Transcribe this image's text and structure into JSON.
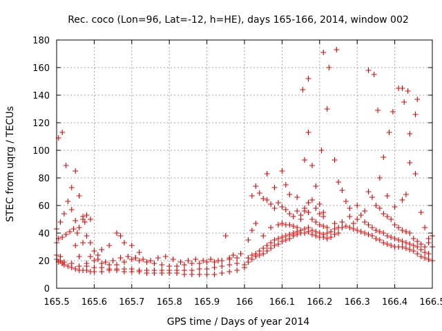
{
  "chart_data": {
    "type": "scatter",
    "title": "Rec. coco (Lon=96, Lat=-12, h=HE), days 165-166, 2014, window 002",
    "xlabel": "GPS time / Days of year 2014",
    "ylabel": "STEC from uqrg / TECUs",
    "xlim": [
      165.5,
      166.5
    ],
    "ylim": [
      0,
      180
    ],
    "xticks": [
      165.5,
      165.6,
      165.7,
      165.8,
      165.9,
      166.0,
      166.1,
      166.2,
      166.3,
      166.4,
      166.5
    ],
    "xtick_labels": [
      "165.5",
      "165.6",
      "165.7",
      "165.8",
      "165.9",
      "166",
      "166.1",
      "166.2",
      "166.3",
      "166.4",
      "166.5"
    ],
    "yticks": [
      0,
      20,
      40,
      60,
      80,
      100,
      120,
      140,
      160,
      180
    ],
    "ytick_labels": [
      "0",
      "20",
      "40",
      "60",
      "80",
      "100",
      "120",
      "140",
      "160",
      "180"
    ],
    "grid": true,
    "marker": "+",
    "color": "#dd0000",
    "points": [
      [
        165.5,
        43
      ],
      [
        165.505,
        36
      ],
      [
        165.51,
        48
      ],
      [
        165.515,
        37
      ],
      [
        165.52,
        54
      ],
      [
        165.525,
        39
      ],
      [
        165.53,
        63
      ],
      [
        165.535,
        41
      ],
      [
        165.54,
        57
      ],
      [
        165.545,
        43
      ],
      [
        165.55,
        49
      ],
      [
        165.555,
        40
      ],
      [
        165.56,
        44
      ],
      [
        165.57,
        52
      ],
      [
        165.575,
        48
      ],
      [
        165.58,
        53
      ],
      [
        165.59,
        50
      ],
      [
        165.505,
        109
      ],
      [
        165.515,
        113
      ],
      [
        165.525,
        89
      ],
      [
        165.54,
        73
      ],
      [
        165.55,
        85
      ],
      [
        165.56,
        67
      ],
      [
        165.57,
        50
      ],
      [
        165.5,
        33
      ],
      [
        165.51,
        23
      ],
      [
        165.55,
        31
      ],
      [
        165.56,
        23
      ],
      [
        165.57,
        33
      ],
      [
        165.58,
        38
      ],
      [
        165.59,
        33
      ],
      [
        165.6,
        27
      ],
      [
        165.61,
        24
      ],
      [
        165.62,
        28
      ],
      [
        165.64,
        31
      ],
      [
        165.66,
        40
      ],
      [
        165.67,
        38
      ],
      [
        165.68,
        33
      ],
      [
        165.7,
        31
      ],
      [
        165.71,
        22
      ],
      [
        165.72,
        26
      ],
      [
        165.5,
        21
      ],
      [
        165.505,
        19
      ],
      [
        165.51,
        20
      ],
      [
        165.515,
        18
      ],
      [
        165.52,
        17
      ],
      [
        165.53,
        16
      ],
      [
        165.54,
        15
      ],
      [
        165.55,
        14
      ],
      [
        165.56,
        13
      ],
      [
        165.57,
        13
      ],
      [
        165.58,
        13
      ],
      [
        165.59,
        12
      ],
      [
        165.6,
        12
      ],
      [
        165.62,
        12
      ],
      [
        165.64,
        13
      ],
      [
        165.66,
        13
      ],
      [
        165.68,
        12
      ],
      [
        165.7,
        12
      ],
      [
        165.72,
        12
      ],
      [
        165.74,
        11
      ],
      [
        165.76,
        11
      ],
      [
        165.78,
        11
      ],
      [
        165.8,
        11
      ],
      [
        165.82,
        11
      ],
      [
        165.84,
        10
      ],
      [
        165.86,
        10
      ],
      [
        165.88,
        10
      ],
      [
        165.9,
        10
      ],
      [
        165.92,
        10
      ],
      [
        165.94,
        11
      ],
      [
        165.96,
        12
      ],
      [
        165.98,
        13
      ],
      [
        165.5,
        24
      ],
      [
        165.52,
        19
      ],
      [
        165.54,
        18
      ],
      [
        165.56,
        16
      ],
      [
        165.58,
        16
      ],
      [
        165.6,
        15
      ],
      [
        165.62,
        15
      ],
      [
        165.64,
        14
      ],
      [
        165.66,
        14
      ],
      [
        165.68,
        14
      ],
      [
        165.7,
        14
      ],
      [
        165.72,
        13
      ],
      [
        165.74,
        13
      ],
      [
        165.76,
        13
      ],
      [
        165.78,
        13
      ],
      [
        165.8,
        13
      ],
      [
        165.82,
        13
      ],
      [
        165.84,
        13
      ],
      [
        165.86,
        13
      ],
      [
        165.88,
        14
      ],
      [
        165.9,
        14
      ],
      [
        165.92,
        15
      ],
      [
        165.94,
        16
      ],
      [
        165.96,
        17
      ],
      [
        165.98,
        18
      ],
      [
        165.58,
        18
      ],
      [
        165.6,
        20
      ],
      [
        165.62,
        18
      ],
      [
        165.64,
        17
      ],
      [
        165.66,
        17
      ],
      [
        165.68,
        19
      ],
      [
        165.7,
        21
      ],
      [
        165.72,
        20
      ],
      [
        165.74,
        19
      ],
      [
        165.76,
        18
      ],
      [
        165.78,
        17
      ],
      [
        165.8,
        16
      ],
      [
        165.82,
        16
      ],
      [
        165.84,
        17
      ],
      [
        165.86,
        18
      ],
      [
        165.88,
        18
      ],
      [
        165.9,
        19
      ],
      [
        165.92,
        19
      ],
      [
        165.94,
        20
      ],
      [
        165.96,
        21
      ],
      [
        165.98,
        22
      ],
      [
        165.59,
        23
      ],
      [
        165.61,
        21
      ],
      [
        165.63,
        19
      ],
      [
        165.65,
        20
      ],
      [
        165.67,
        22
      ],
      [
        165.69,
        23
      ],
      [
        165.71,
        22
      ],
      [
        165.73,
        21
      ],
      [
        165.75,
        20
      ],
      [
        165.77,
        22
      ],
      [
        165.79,
        23
      ],
      [
        165.81,
        21
      ],
      [
        165.83,
        19
      ],
      [
        165.85,
        20
      ],
      [
        165.87,
        21
      ],
      [
        165.89,
        20
      ],
      [
        165.91,
        21
      ],
      [
        165.93,
        20
      ],
      [
        165.95,
        38
      ],
      [
        165.96,
        22
      ],
      [
        165.97,
        24
      ],
      [
        165.99,
        25
      ],
      [
        166.0,
        17
      ],
      [
        166.01,
        22
      ],
      [
        166.02,
        24
      ],
      [
        166.03,
        25
      ],
      [
        166.04,
        27
      ],
      [
        166.05,
        29
      ],
      [
        166.06,
        31
      ],
      [
        166.07,
        33
      ],
      [
        166.08,
        35
      ],
      [
        166.09,
        36
      ],
      [
        166.1,
        37
      ],
      [
        166.11,
        38
      ],
      [
        166.12,
        39
      ],
      [
        166.13,
        40
      ],
      [
        166.14,
        41
      ],
      [
        166.15,
        42
      ],
      [
        166.16,
        43
      ],
      [
        166.17,
        44
      ],
      [
        166.18,
        42
      ],
      [
        166.19,
        41
      ],
      [
        166.2,
        40
      ],
      [
        166.21,
        39
      ],
      [
        166.22,
        40
      ],
      [
        166.23,
        41
      ],
      [
        166.24,
        43
      ],
      [
        166.25,
        44
      ],
      [
        166.0,
        15
      ],
      [
        166.01,
        19
      ],
      [
        166.02,
        21
      ],
      [
        166.03,
        23
      ],
      [
        166.04,
        24
      ],
      [
        166.05,
        25
      ],
      [
        166.06,
        27
      ],
      [
        166.07,
        29
      ],
      [
        166.08,
        31
      ],
      [
        166.09,
        32
      ],
      [
        166.1,
        34
      ],
      [
        166.11,
        35
      ],
      [
        166.12,
        36
      ],
      [
        166.13,
        38
      ],
      [
        166.14,
        39
      ],
      [
        166.15,
        40
      ],
      [
        166.16,
        40
      ],
      [
        166.17,
        41
      ],
      [
        166.18,
        39
      ],
      [
        166.19,
        38
      ],
      [
        166.2,
        37
      ],
      [
        166.21,
        37
      ],
      [
        166.22,
        36
      ],
      [
        166.23,
        37
      ],
      [
        166.24,
        39
      ],
      [
        166.25,
        40
      ],
      [
        166.01,
        35
      ],
      [
        166.02,
        42
      ],
      [
        166.03,
        47
      ],
      [
        166.05,
        38
      ],
      [
        166.07,
        44
      ],
      [
        166.09,
        46
      ],
      [
        166.1,
        47
      ],
      [
        166.11,
        46
      ],
      [
        166.12,
        46
      ],
      [
        166.13,
        45
      ],
      [
        166.14,
        44
      ],
      [
        166.15,
        50
      ],
      [
        166.16,
        56
      ],
      [
        166.17,
        55
      ],
      [
        166.18,
        50
      ],
      [
        166.19,
        48
      ],
      [
        166.2,
        46
      ],
      [
        166.21,
        45
      ],
      [
        166.22,
        44
      ],
      [
        166.24,
        47
      ],
      [
        166.02,
        67
      ],
      [
        166.03,
        74
      ],
      [
        166.04,
        69
      ],
      [
        166.05,
        65
      ],
      [
        166.06,
        64
      ],
      [
        166.07,
        61
      ],
      [
        166.08,
        58
      ],
      [
        166.09,
        62
      ],
      [
        166.1,
        59
      ],
      [
        166.11,
        57
      ],
      [
        166.12,
        54
      ],
      [
        166.13,
        52
      ],
      [
        166.14,
        56
      ],
      [
        166.15,
        53
      ],
      [
        166.16,
        58
      ],
      [
        166.17,
        62
      ],
      [
        166.18,
        64
      ],
      [
        166.19,
        58
      ],
      [
        166.2,
        54
      ],
      [
        166.21,
        52
      ],
      [
        166.06,
        83
      ],
      [
        166.08,
        73
      ],
      [
        166.1,
        85
      ],
      [
        166.11,
        75
      ],
      [
        166.12,
        68
      ],
      [
        166.14,
        66
      ],
      [
        166.16,
        93
      ],
      [
        166.17,
        113
      ],
      [
        166.18,
        89
      ],
      [
        166.19,
        74
      ],
      [
        166.2,
        61
      ],
      [
        166.21,
        55
      ],
      [
        166.155,
        144
      ],
      [
        166.17,
        152
      ],
      [
        166.205,
        100
      ],
      [
        166.22,
        130
      ],
      [
        166.24,
        93
      ],
      [
        166.25,
        77
      ],
      [
        166.26,
        71
      ],
      [
        166.21,
        171
      ],
      [
        166.225,
        160
      ],
      [
        166.245,
        173
      ],
      [
        166.26,
        44
      ],
      [
        166.27,
        45
      ],
      [
        166.28,
        44
      ],
      [
        166.29,
        43
      ],
      [
        166.3,
        42
      ],
      [
        166.31,
        41
      ],
      [
        166.32,
        40
      ],
      [
        166.33,
        39
      ],
      [
        166.34,
        38
      ],
      [
        166.35,
        36
      ],
      [
        166.36,
        35
      ],
      [
        166.37,
        33
      ],
      [
        166.38,
        32
      ],
      [
        166.39,
        31
      ],
      [
        166.4,
        30
      ],
      [
        166.41,
        30
      ],
      [
        166.42,
        30
      ],
      [
        166.43,
        29
      ],
      [
        166.44,
        28
      ],
      [
        166.45,
        27
      ],
      [
        166.46,
        25
      ],
      [
        166.47,
        23
      ],
      [
        166.48,
        22
      ],
      [
        166.49,
        21
      ],
      [
        166.5,
        20
      ],
      [
        166.26,
        48
      ],
      [
        166.28,
        52
      ],
      [
        166.29,
        47
      ],
      [
        166.3,
        50
      ],
      [
        166.31,
        53
      ],
      [
        166.32,
        48
      ],
      [
        166.33,
        46
      ],
      [
        166.34,
        44
      ],
      [
        166.35,
        42
      ],
      [
        166.36,
        41
      ],
      [
        166.37,
        40
      ],
      [
        166.38,
        38
      ],
      [
        166.39,
        37
      ],
      [
        166.4,
        36
      ],
      [
        166.41,
        35
      ],
      [
        166.42,
        34
      ],
      [
        166.43,
        33
      ],
      [
        166.44,
        32
      ],
      [
        166.45,
        31
      ],
      [
        166.46,
        30
      ],
      [
        166.47,
        28
      ],
      [
        166.48,
        26
      ],
      [
        166.49,
        25
      ],
      [
        166.27,
        63
      ],
      [
        166.28,
        58
      ],
      [
        166.3,
        60
      ],
      [
        166.32,
        56
      ],
      [
        166.33,
        70
      ],
      [
        166.34,
        66
      ],
      [
        166.35,
        60
      ],
      [
        166.36,
        58
      ],
      [
        166.37,
        54
      ],
      [
        166.38,
        52
      ],
      [
        166.39,
        50
      ],
      [
        166.4,
        46
      ],
      [
        166.41,
        44
      ],
      [
        166.42,
        42
      ],
      [
        166.43,
        41
      ],
      [
        166.44,
        40
      ],
      [
        166.45,
        36
      ],
      [
        166.46,
        34
      ],
      [
        166.47,
        32
      ],
      [
        166.48,
        30
      ],
      [
        166.49,
        36
      ],
      [
        166.5,
        38
      ],
      [
        166.33,
        158
      ],
      [
        166.345,
        155
      ],
      [
        166.355,
        129
      ],
      [
        166.36,
        80
      ],
      [
        166.37,
        95
      ],
      [
        166.38,
        67
      ],
      [
        166.385,
        113
      ],
      [
        166.395,
        128
      ],
      [
        166.41,
        145
      ],
      [
        166.42,
        145
      ],
      [
        166.425,
        135
      ],
      [
        166.435,
        143
      ],
      [
        166.44,
        112
      ],
      [
        166.44,
        91
      ],
      [
        166.455,
        126
      ],
      [
        166.46,
        137
      ],
      [
        166.455,
        83
      ],
      [
        166.43,
        68
      ],
      [
        166.42,
        64
      ],
      [
        166.4,
        59
      ],
      [
        166.47,
        55
      ],
      [
        166.48,
        44
      ],
      [
        166.49,
        33
      ],
      [
        166.5,
        30
      ]
    ]
  }
}
